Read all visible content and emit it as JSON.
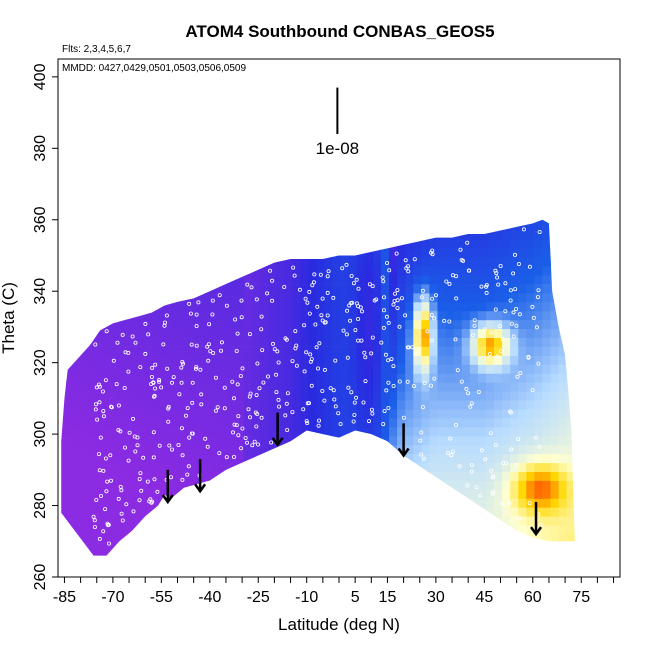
{
  "chart_data": {
    "type": "heatmap",
    "title": "ATOM4 Southbound CONBAS_GEOS5",
    "subtitle_flights": "Flts: 2,3,4,5,6,7",
    "subtitle_dates": "MMDD: 0427,0429,0501,0503,0506,0509",
    "xlabel": "Latitude (deg N)",
    "ylabel": "Theta (C)",
    "xlim": [
      -87,
      87
    ],
    "ylim": [
      260,
      405
    ],
    "x_ticks": [
      -85,
      -70,
      -55,
      -40,
      -25,
      -10,
      5,
      15,
      30,
      45,
      60,
      75
    ],
    "x_minor_step": 5,
    "y_ticks": [
      260,
      280,
      300,
      320,
      340,
      360,
      380,
      400
    ],
    "scale_bar": {
      "label": "1e-08",
      "x": -0.5,
      "y_top": 397,
      "y_bottom": 384
    },
    "lower_boundary": [
      [
        -76,
        266
      ],
      [
        -72,
        266
      ],
      [
        -68,
        270
      ],
      [
        -64,
        273
      ],
      [
        -60,
        277
      ],
      [
        -56,
        280
      ],
      [
        -54,
        283
      ],
      [
        -52,
        282
      ],
      [
        -48,
        285
      ],
      [
        -44,
        286
      ],
      [
        -40,
        287
      ],
      [
        -35,
        290
      ],
      [
        -30,
        292
      ],
      [
        -25,
        294
      ],
      [
        -20,
        296
      ],
      [
        -15,
        298
      ],
      [
        -10,
        301
      ],
      [
        -5,
        300
      ],
      [
        0,
        299
      ],
      [
        5,
        301
      ],
      [
        10,
        300
      ],
      [
        15,
        298
      ],
      [
        20,
        294
      ],
      [
        25,
        291
      ],
      [
        30,
        288
      ],
      [
        35,
        285
      ],
      [
        40,
        282
      ],
      [
        45,
        279
      ],
      [
        50,
        276
      ],
      [
        55,
        273
      ],
      [
        60,
        271
      ],
      [
        65,
        270
      ],
      [
        72,
        270
      ]
    ],
    "upper_boundary": [
      [
        -86,
        278
      ],
      [
        -86,
        298
      ],
      [
        -85,
        310
      ],
      [
        -84,
        318
      ],
      [
        -82,
        320
      ],
      [
        -80,
        322
      ],
      [
        -77,
        325
      ],
      [
        -74,
        329
      ],
      [
        -70,
        331
      ],
      [
        -66,
        332
      ],
      [
        -62,
        333
      ],
      [
        -58,
        334
      ],
      [
        -54,
        336
      ],
      [
        -50,
        337
      ],
      [
        -45,
        338
      ],
      [
        -40,
        340
      ],
      [
        -35,
        342
      ],
      [
        -30,
        344
      ],
      [
        -25,
        346
      ],
      [
        -20,
        348
      ],
      [
        -15,
        349
      ],
      [
        -10,
        349
      ],
      [
        -5,
        349
      ],
      [
        0,
        350
      ],
      [
        5,
        350
      ],
      [
        10,
        351
      ],
      [
        15,
        352
      ],
      [
        20,
        353
      ],
      [
        25,
        354
      ],
      [
        30,
        355
      ],
      [
        35,
        355
      ],
      [
        40,
        356
      ],
      [
        45,
        356
      ],
      [
        50,
        357
      ],
      [
        55,
        358
      ],
      [
        60,
        359
      ],
      [
        63,
        360
      ],
      [
        65,
        359
      ],
      [
        66,
        340
      ],
      [
        68,
        330
      ],
      [
        70,
        322
      ],
      [
        71,
        312
      ],
      [
        72,
        300
      ],
      [
        73,
        270
      ]
    ],
    "colormap": [
      "#8b2be2",
      "#2a2ae0",
      "#1a5fe8",
      "#b8dcff",
      "#ffffd0",
      "#ffd700",
      "#ff4500",
      "#d00000"
    ],
    "value_field": {
      "background": {
        "x": [
          -87,
          -30,
          -15,
          0,
          10,
          20,
          30,
          45,
          60,
          75
        ],
        "v": [
          0.02,
          0.05,
          0.1,
          0.2,
          0.28,
          0.38,
          0.42,
          0.42,
          0.46,
          0.52
        ]
      },
      "blobs": [
        {
          "x": 26,
          "y": 328,
          "sx": 2,
          "sy": 7,
          "amp": 0.5
        },
        {
          "x": 47,
          "y": 325,
          "sx": 4,
          "sy": 4,
          "amp": 0.45
        },
        {
          "x": 62,
          "y": 285,
          "sx": 6,
          "sy": 5,
          "amp": 0.3
        },
        {
          "x": 10,
          "y": 330,
          "sx": 4,
          "sy": 30,
          "amp": -0.15
        }
      ]
    },
    "arrows": [
      {
        "x": -53,
        "y_top": 290,
        "y_bottom": 281
      },
      {
        "x": -43,
        "y_top": 293,
        "y_bottom": 284
      },
      {
        "x": -19,
        "y_top": 306,
        "y_bottom": 297
      },
      {
        "x": 20,
        "y_top": 303,
        "y_bottom": 294
      },
      {
        "x": 61,
        "y_top": 281,
        "y_bottom": 272
      }
    ],
    "sample_points_note": "",
    "sample_points": {
      "count": 520,
      "x_range": [
        -78,
        70
      ]
    }
  }
}
